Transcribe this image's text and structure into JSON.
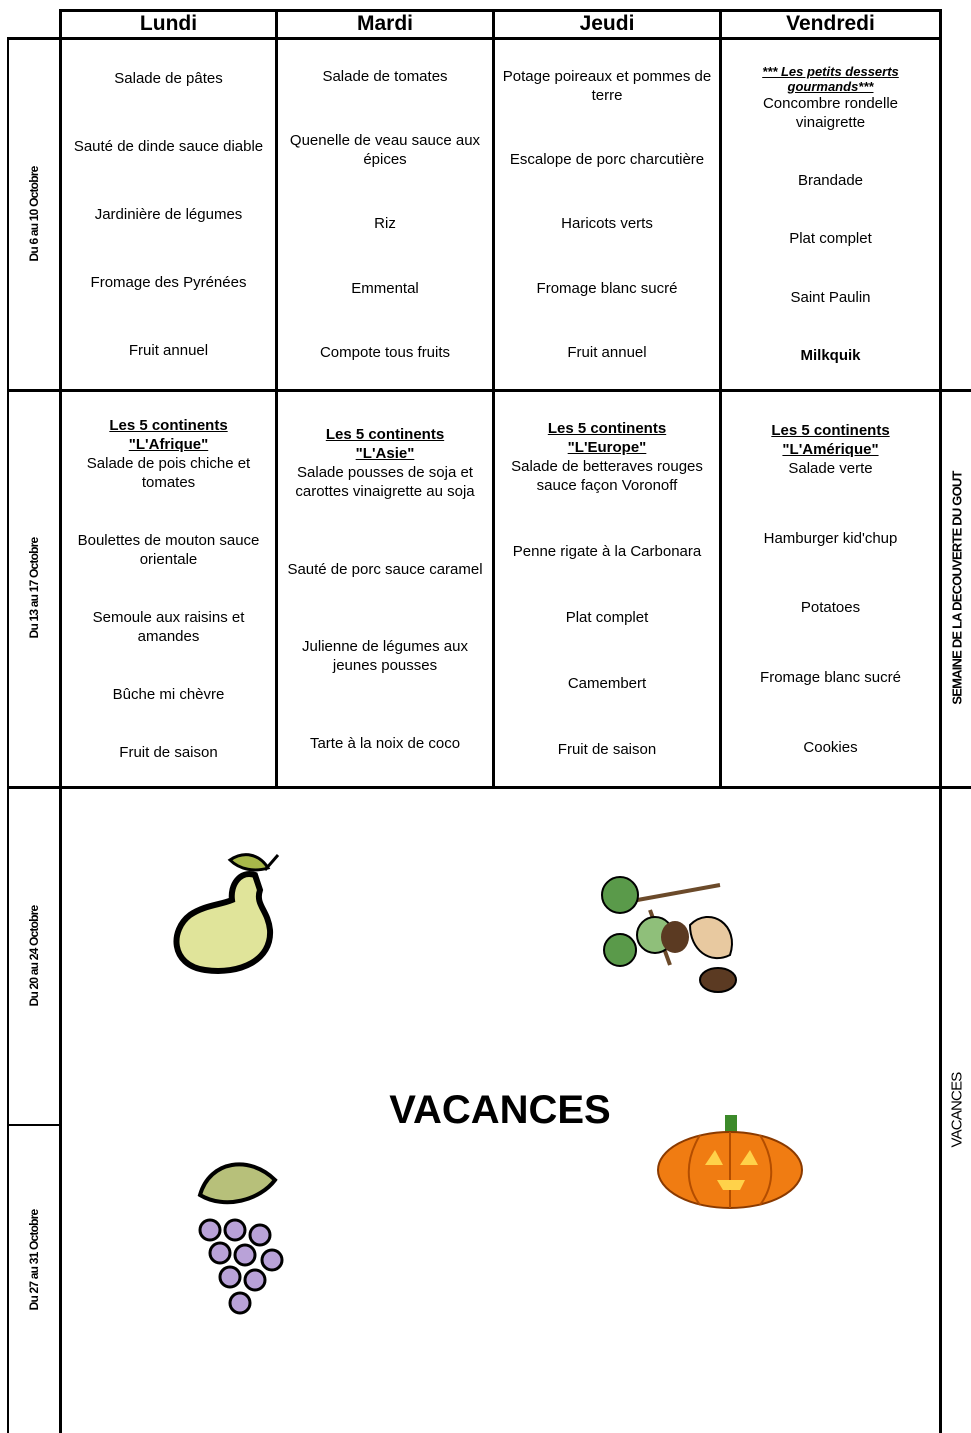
{
  "days": [
    "Lundi",
    "Mardi",
    "Jeudi",
    "Vendredi"
  ],
  "weeks": [
    {
      "label": "Du 6 au 10 Octobre",
      "cells": [
        {
          "items": [
            "Salade de pâtes",
            "Sauté de dinde sauce diable",
            "Jardinière de légumes",
            "Fromage des Pyrénées",
            "Fruit annuel"
          ]
        },
        {
          "items": [
            "Salade de tomates",
            "Quenelle de veau sauce aux épices",
            "Riz",
            "Emmental",
            "Compote tous fruits"
          ]
        },
        {
          "items": [
            "Potage poireaux et pommes de terre",
            "Escalope de porc charcutière",
            "Haricots verts",
            "Fromage blanc sucré",
            "Fruit annuel"
          ]
        },
        {
          "theme": {
            "lines": [
              "*** Les petits desserts gourmands***"
            ],
            "italic": true
          },
          "items": [
            "Concombre rondelle vinaigrette",
            "Brandade",
            "Plat complet",
            "Saint Paulin",
            {
              "text": "Milkquik",
              "bold": true
            }
          ]
        }
      ]
    },
    {
      "label": "Du 13 au 17 Octobre",
      "note": "SEMAINE DE LA DECOUVERTE DU GOUT",
      "cells": [
        {
          "theme": {
            "lines": [
              "Les 5 continents",
              "\"L'Afrique\""
            ]
          },
          "items": [
            "Salade de pois chiche et tomates",
            "Boulettes de mouton sauce orientale",
            "Semoule aux raisins et amandes",
            "Bûche mi chèvre",
            "Fruit de saison"
          ]
        },
        {
          "theme": {
            "lines": [
              "Les 5 continents",
              "\"L'Asie\""
            ]
          },
          "items": [
            "Salade pousses de soja et carottes vinaigrette au soja",
            "Sauté de porc sauce caramel",
            "Julienne de légumes aux jeunes pousses",
            "Tarte à la noix de coco"
          ]
        },
        {
          "theme": {
            "lines": [
              "Les 5 continents",
              "\"L'Europe\""
            ]
          },
          "items": [
            "Salade de betteraves rouges sauce façon Voronoff",
            "Penne rigate à la Carbonara",
            "Plat complet",
            "Camembert",
            "Fruit de saison"
          ]
        },
        {
          "theme": {
            "lines": [
              "Les 5 continents",
              "\"L'Amérique\""
            ]
          },
          "items": [
            "Salade verte",
            "Hamburger kid'chup",
            "Potatoes",
            "Fromage blanc sucré",
            "Cookies"
          ]
        }
      ]
    }
  ],
  "vacation": {
    "weeks": [
      "Du 20 au 24 Octobre",
      "Du 27 au 31 Octobre"
    ],
    "title": "VACANCES",
    "note": "VACANCES"
  }
}
